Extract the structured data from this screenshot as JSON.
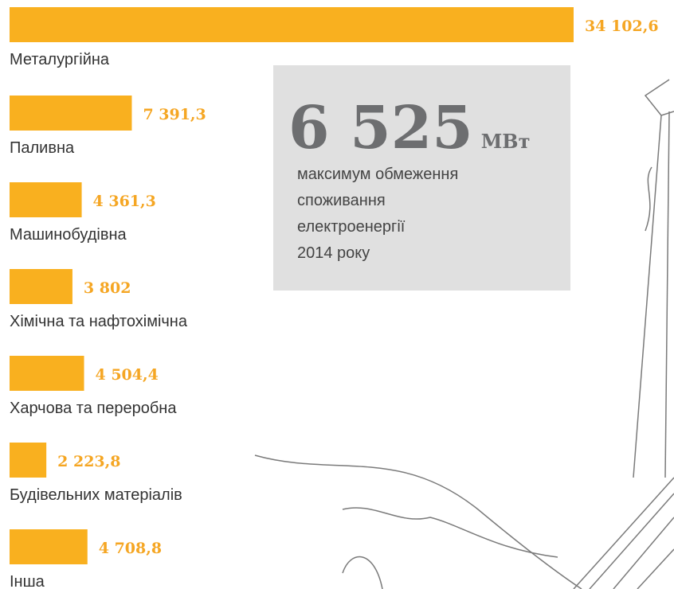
{
  "chart_data": {
    "type": "bar",
    "categories": [
      "Металургійна",
      "Паливна",
      "Машинобудівна",
      "Хімічна та нафтохімічна",
      "Харчова та переробна",
      "Будівельних матеріалів",
      "Інша"
    ],
    "values": [
      34102.6,
      7391.3,
      4361.3,
      3802,
      4504.4,
      2223.8,
      4708.8
    ],
    "value_labels": [
      "34 102,6",
      "7 391,3",
      "4 361,3",
      "3 802",
      "4 504,4",
      "2 223,8",
      "4 708,8"
    ],
    "color": "#f9b01f"
  },
  "highlight": {
    "value": "6 525",
    "unit": "МВт",
    "text_lines": [
      "максимум обмеження",
      "споживання",
      "електроенергії",
      "2014 року"
    ]
  }
}
